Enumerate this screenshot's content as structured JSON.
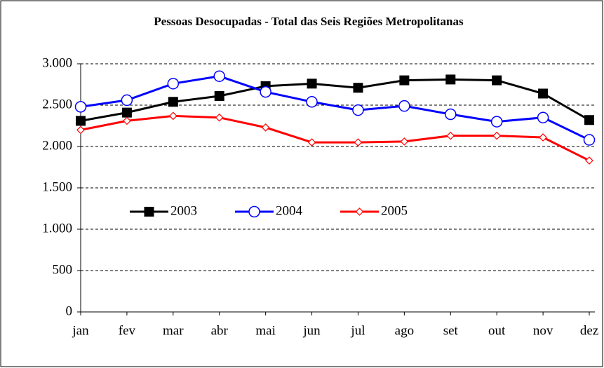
{
  "chart_data": {
    "type": "line",
    "title": "Pessoas Desocupadas - Total das Seis Regiões Metropolitanas",
    "categories": [
      "jan",
      "fev",
      "mar",
      "abr",
      "mai",
      "jun",
      "jul",
      "ago",
      "set",
      "out",
      "nov",
      "dez"
    ],
    "series": [
      {
        "name": "2003",
        "color": "#000000",
        "marker": "square",
        "values": [
          2310,
          2410,
          2540,
          2610,
          2730,
          2760,
          2710,
          2800,
          2810,
          2800,
          2640,
          2320
        ]
      },
      {
        "name": "2004",
        "color": "#0000ff",
        "marker": "circle",
        "values": [
          2480,
          2560,
          2760,
          2850,
          2660,
          2540,
          2440,
          2490,
          2390,
          2300,
          2350,
          2080
        ]
      },
      {
        "name": "2005",
        "color": "#ff0000",
        "marker": "diamond",
        "values": [
          2200,
          2310,
          2370,
          2350,
          2230,
          2050,
          2050,
          2060,
          2130,
          2130,
          2110,
          1830
        ]
      }
    ],
    "ylim": [
      0,
      3000
    ],
    "yticks": [
      0,
      500,
      {
        "value": 1000,
        "label": "1.000"
      },
      {
        "value": 1500,
        "label": "1.500"
      },
      {
        "value": 2000,
        "label": "2.000"
      },
      {
        "value": 2500,
        "label": "2.500"
      },
      {
        "value": 3000,
        "label": "3.000"
      }
    ],
    "grid": true
  }
}
